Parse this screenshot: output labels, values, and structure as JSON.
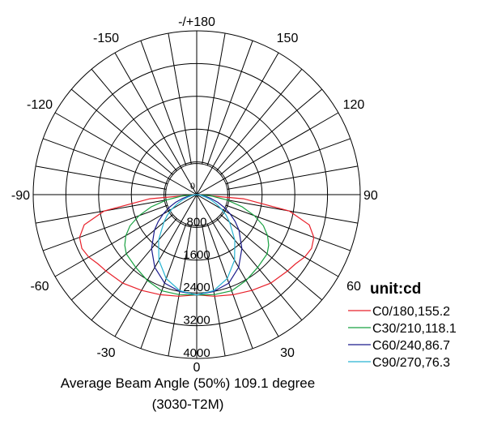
{
  "chart_data": {
    "type": "polar",
    "unit_label": "unit:cd",
    "angle_labels": [
      "-/+180",
      "150",
      "120",
      "90",
      "60",
      "30",
      "0",
      "-30",
      "-60",
      "-90",
      "-120",
      "-150"
    ],
    "radial_ticks": [
      "0",
      "800",
      "1600",
      "2400",
      "3200",
      "4000"
    ],
    "radial_values": [
      0,
      800,
      1600,
      2400,
      3200,
      4000
    ],
    "r_max": 4000,
    "grid": true,
    "legend_position": "bottom-right",
    "series": [
      {
        "name": "C0/180,155.2",
        "color": "#e8202a",
        "angles": [
          0,
          10,
          20,
          30,
          40,
          50,
          55,
          60,
          65,
          70,
          75,
          80,
          85,
          90
        ],
        "values": [
          2450,
          2520,
          2600,
          2700,
          2820,
          2900,
          2950,
          3050,
          3100,
          3050,
          2850,
          2300,
          1150,
          0
        ]
      },
      {
        "name": "C30/210,118.1",
        "color": "#18a040",
        "angles": [
          0,
          10,
          20,
          30,
          40,
          50,
          55,
          60,
          65,
          70,
          75,
          80,
          85,
          90
        ],
        "values": [
          2450,
          2480,
          2500,
          2420,
          2320,
          2250,
          2150,
          2000,
          1800,
          1500,
          1150,
          750,
          350,
          0
        ]
      },
      {
        "name": "C60/240,86.7",
        "color": "#1a1a8c",
        "angles": [
          0,
          10,
          20,
          30,
          40,
          50,
          55,
          60,
          65,
          70,
          75,
          80,
          85,
          90
        ],
        "values": [
          2450,
          2400,
          2300,
          2050,
          1720,
          1350,
          1150,
          950,
          750,
          550,
          350,
          200,
          80,
          0
        ]
      },
      {
        "name": "C90/270,76.3",
        "color": "#28b4d2",
        "angles": [
          0,
          10,
          20,
          30,
          40,
          50,
          55,
          60,
          65,
          70,
          75,
          80,
          85,
          90
        ],
        "values": [
          2450,
          2380,
          2180,
          1850,
          1450,
          1050,
          880,
          700,
          520,
          360,
          220,
          110,
          40,
          0
        ]
      }
    ]
  },
  "caption": {
    "line1": "Average Beam Angle (50%) 109.1 degree",
    "line2": "(3030-T2M)"
  }
}
